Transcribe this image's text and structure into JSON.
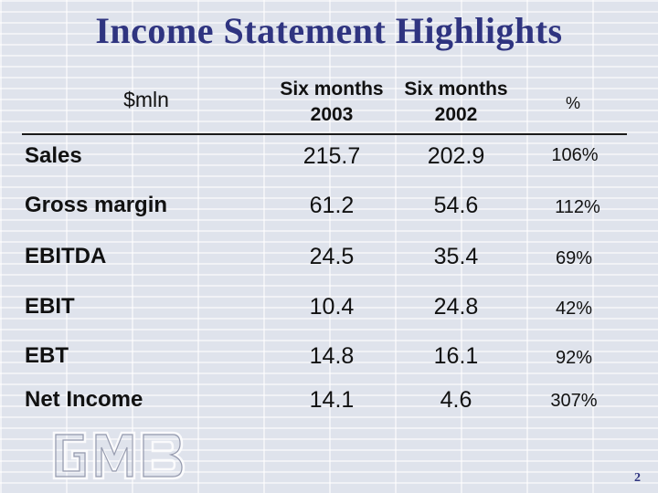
{
  "title": "Income Statement Highlights",
  "header": {
    "unit": "$mln",
    "col1_line1": "Six months",
    "col1_line2": "2003",
    "col2_line1": "Six months",
    "col2_line2": "2002",
    "pct": "%"
  },
  "rows": [
    {
      "label": "Sales",
      "v2003": "215.7",
      "v2002": "202.9",
      "pct": "106%"
    },
    {
      "label": "Gross margin",
      "v2003": "61.2",
      "v2002": "54.6",
      "pct": "112%"
    },
    {
      "label": "EBITDA",
      "v2003": "24.5",
      "v2002": "35.4",
      "pct": "69%"
    },
    {
      "label": "EBIT",
      "v2003": "10.4",
      "v2002": "24.8",
      "pct": "42%"
    },
    {
      "label": "EBT",
      "v2003": "14.8",
      "v2002": "16.1",
      "pct": "92%"
    },
    {
      "label": "Net Income",
      "v2003": "14.1",
      "v2002": "4.6",
      "pct": "307%"
    }
  ],
  "logo_text": "GMB",
  "page_number": "2",
  "colors": {
    "title": "#2f3480",
    "background": "#dfe3ec"
  }
}
